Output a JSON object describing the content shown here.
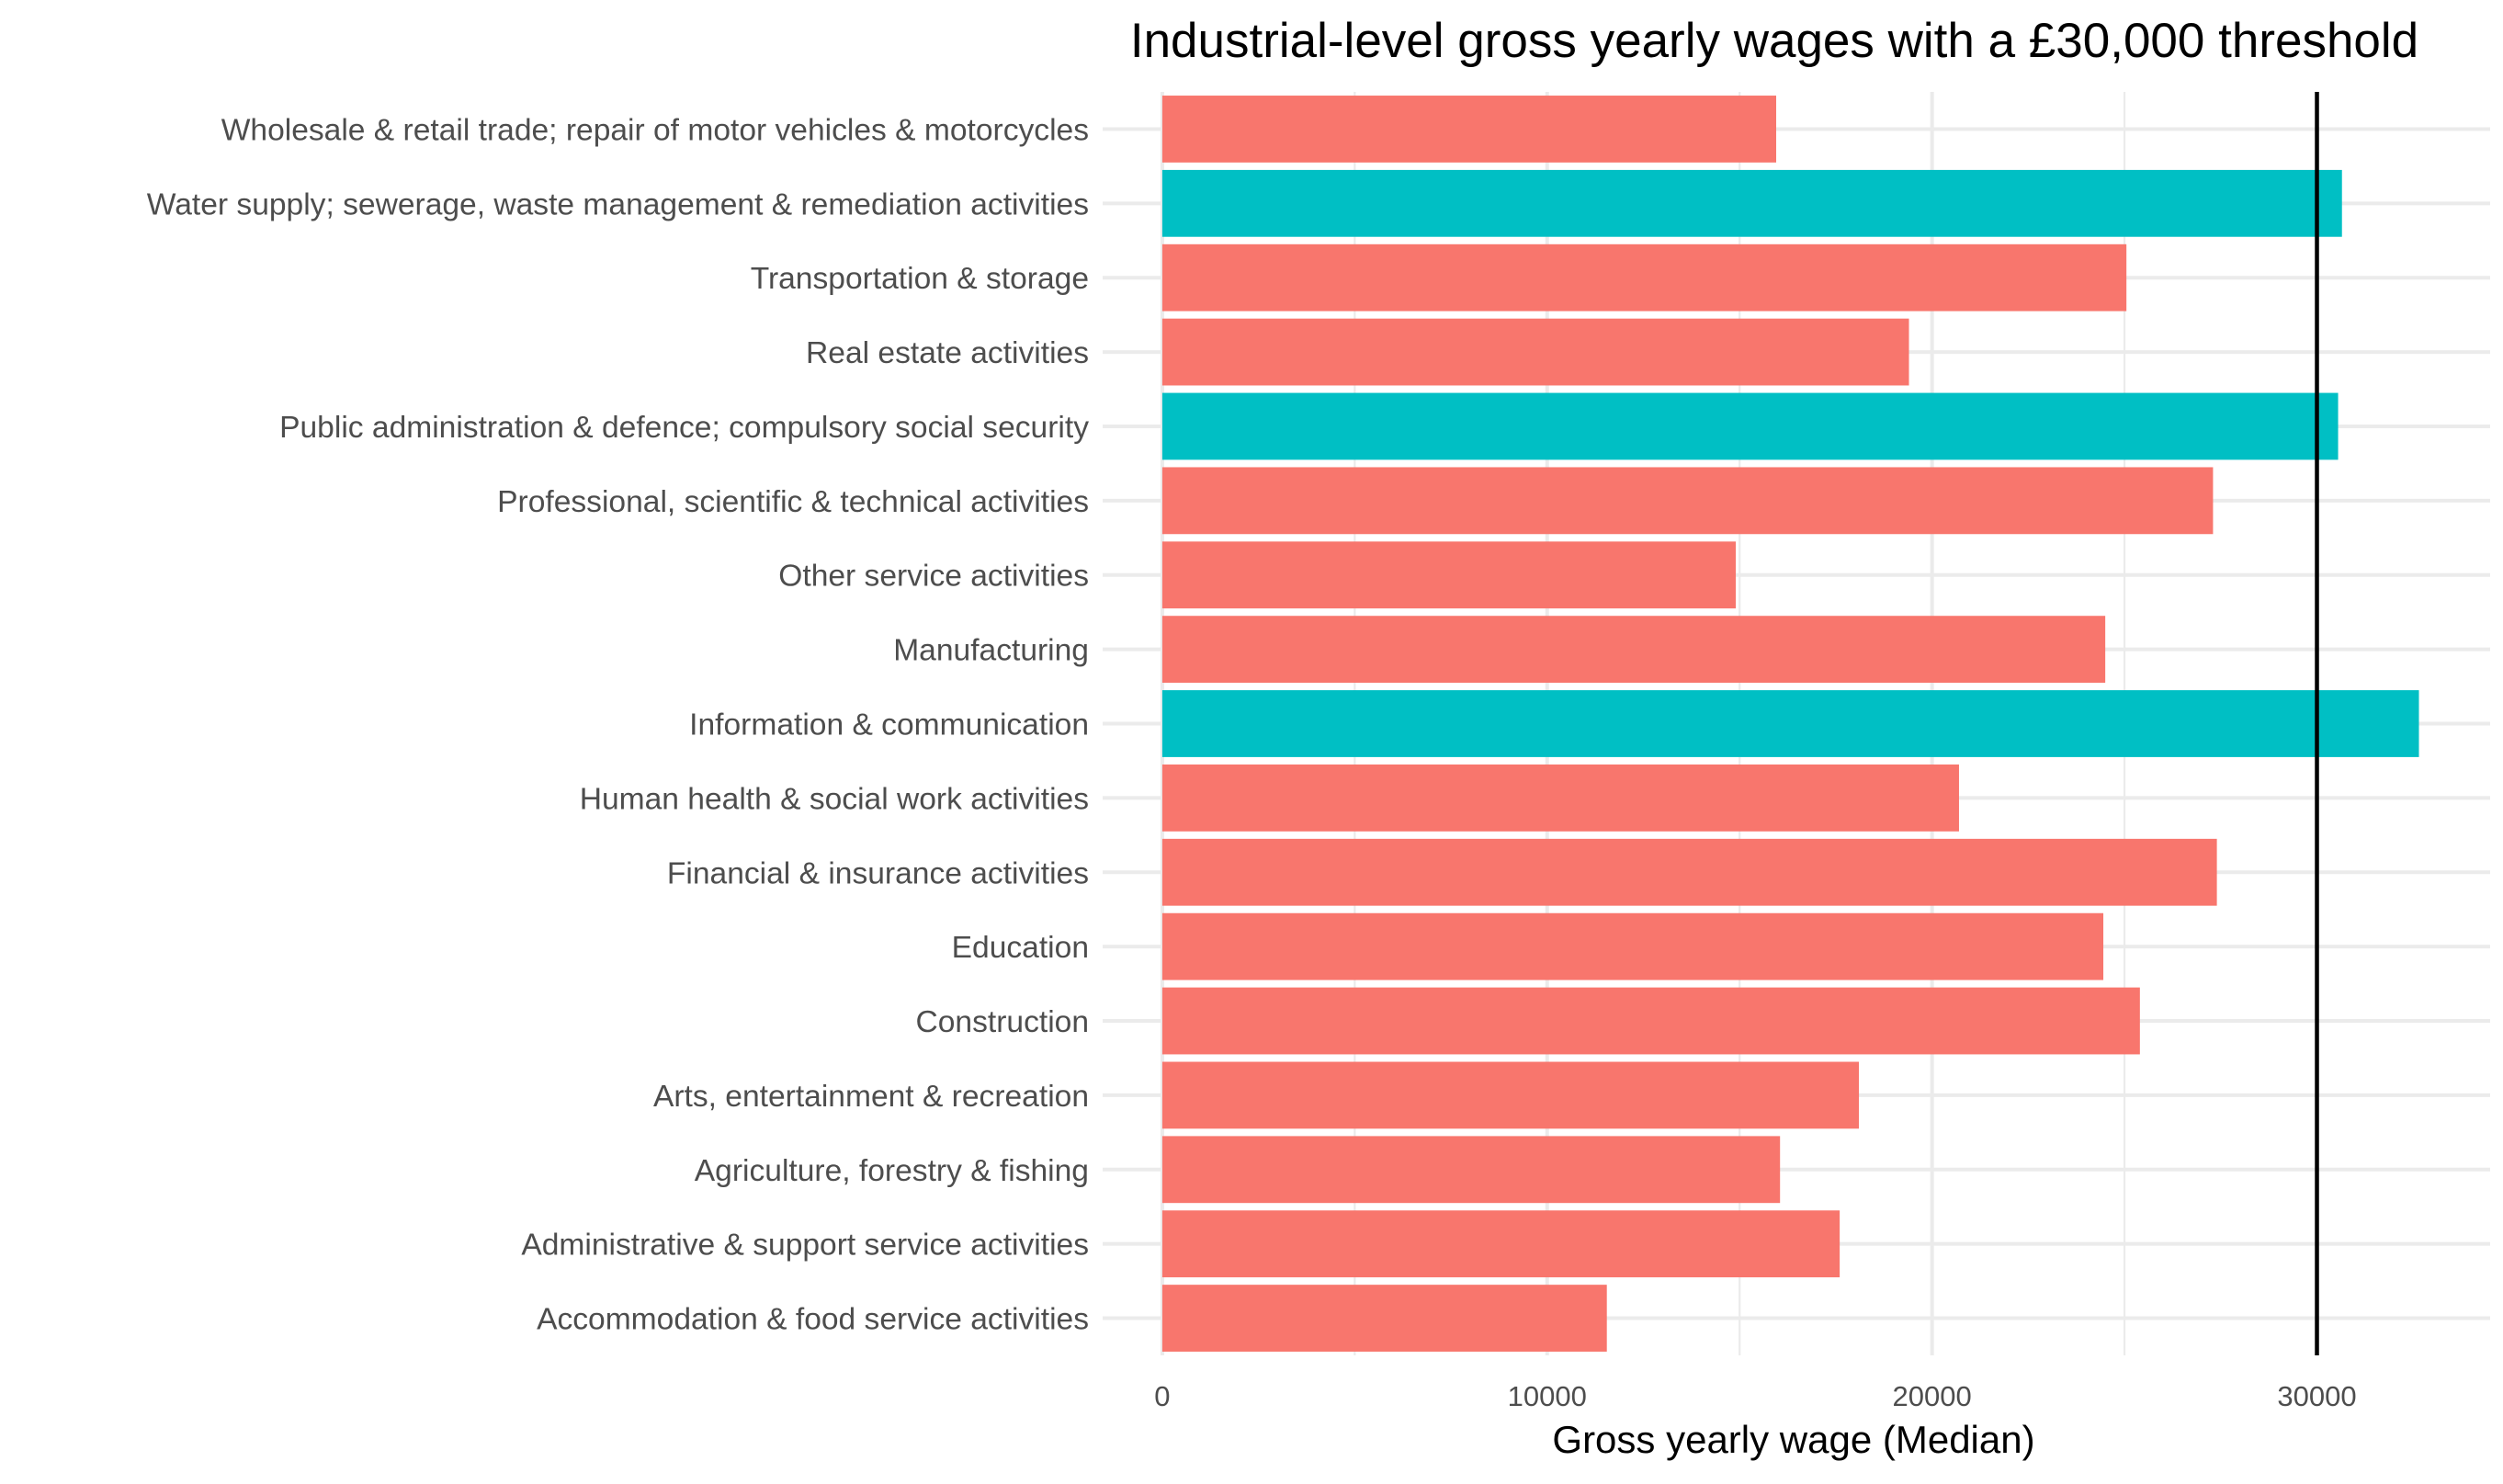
{
  "chart_data": {
    "type": "bar",
    "orientation": "horizontal",
    "title": "Industrial-level gross yearly wages with a £30,000 threshold",
    "xlabel": "Gross yearly wage (Median)",
    "ylabel": "",
    "xlim": [
      -1550,
      34500
    ],
    "x_ticks": [
      0,
      10000,
      20000,
      30000
    ],
    "x_tick_labels": [
      "0",
      "10000",
      "20000",
      "30000"
    ],
    "threshold": 30000,
    "grid": true,
    "legend": "none",
    "colors": {
      "below": "#F8766D",
      "above": "#00BFC4",
      "threshold_line": "#000000",
      "grid": "#ebebeb"
    },
    "categories": [
      "Wholesale & retail trade; repair of motor vehicles & motorcycles",
      "Water supply; sewerage, waste management & remediation activities",
      "Transportation & storage",
      "Real estate activities",
      "Public administration & defence; compulsory social security",
      "Professional, scientific & technical activities",
      "Other service activities",
      "Manufacturing",
      "Information & communication",
      "Human health & social work activities",
      "Financial & insurance activities",
      "Education",
      "Construction",
      "Arts, entertainment & recreation",
      "Agriculture, forestry & fishing",
      "Administrative & support service activities",
      "Accommodation & food service activities"
    ],
    "values": [
      15950,
      30650,
      25050,
      19400,
      30550,
      27300,
      14900,
      24500,
      32650,
      20700,
      27400,
      24450,
      25400,
      18100,
      16050,
      17600,
      11550
    ]
  }
}
